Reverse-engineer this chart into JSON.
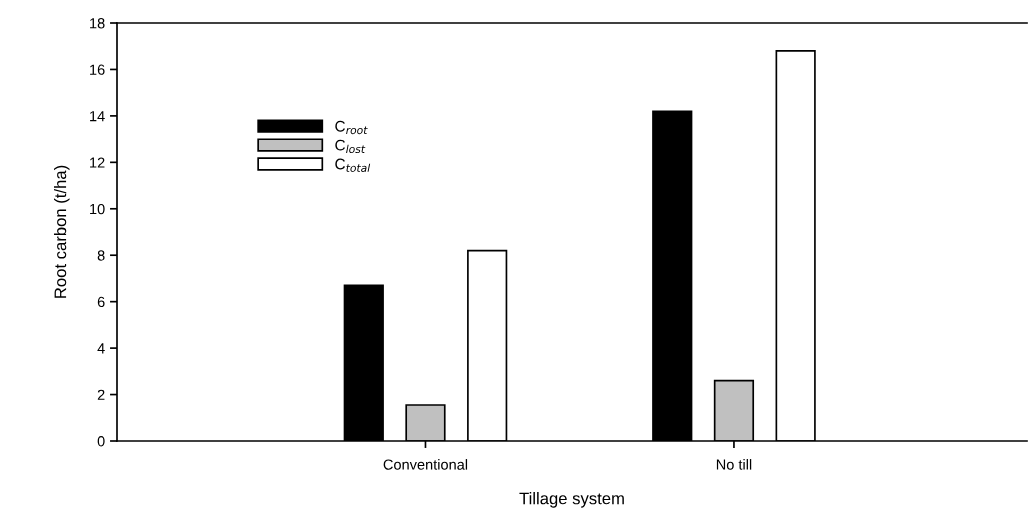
{
  "chart_data": {
    "type": "bar",
    "xlabel": "Tillage system",
    "ylabel": "Root carbon (t/ha)",
    "categories": [
      "Conventional",
      "No till"
    ],
    "series": [
      {
        "name": "C$_{root}$",
        "color": "#000000",
        "values": [
          6.7,
          14.2
        ]
      },
      {
        "name": "C$_{lost}$",
        "color": "#c0c0c0",
        "values": [
          1.55,
          2.6
        ]
      },
      {
        "name": "C$_{total}$",
        "color": "#ffffff",
        "values": [
          8.2,
          16.8
        ]
      }
    ],
    "ylim": [
      0,
      18
    ],
    "yticks": [
      0,
      2,
      4,
      6,
      8,
      10,
      12,
      14,
      16,
      18
    ],
    "grid": false,
    "legend": "top left"
  }
}
